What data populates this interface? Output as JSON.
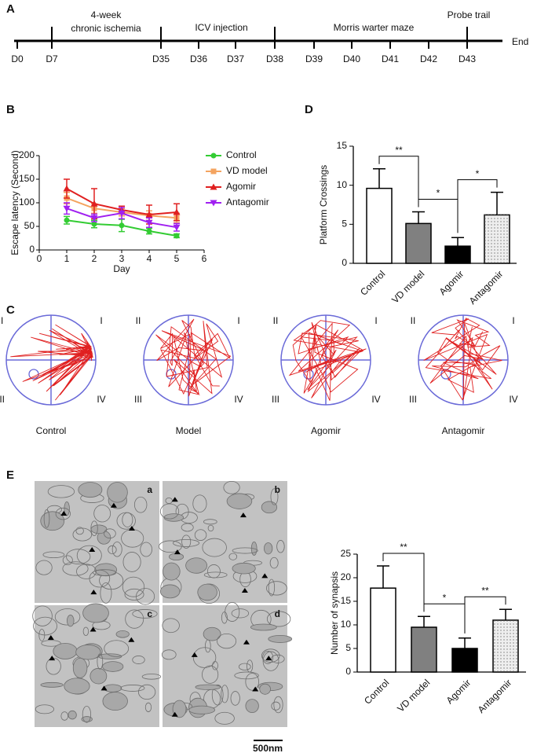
{
  "panel_labels": [
    "A",
    "B",
    "C",
    "D",
    "E"
  ],
  "timeline": {
    "days": [
      "D0",
      "D7",
      "D35",
      "D36",
      "D37",
      "D38",
      "D39",
      "D40",
      "D41",
      "D42",
      "D43"
    ],
    "phases": [
      [
        "4-week",
        "chronic ischemia"
      ],
      [
        "ICV injection"
      ],
      [
        "Morris warter maze"
      ],
      [
        "Probe trail"
      ]
    ],
    "end": "End"
  },
  "maze": {
    "quadrants": [
      "I",
      "II",
      "III",
      "IV"
    ],
    "groups": [
      "Control",
      "Model",
      "Agomir",
      "Antagomir"
    ]
  },
  "em": {
    "subpanels": [
      "a",
      "b",
      "c",
      "d"
    ],
    "scale_bar": "500nm"
  },
  "chart_data": [
    {
      "type": "line",
      "x_label": "Day",
      "y_label": "Escape latency (Second)",
      "x": [
        1,
        2,
        3,
        4,
        5
      ],
      "xlim": [
        0,
        6
      ],
      "xticks": [
        0,
        1,
        2,
        3,
        4,
        5,
        6
      ],
      "ylim": [
        0,
        200
      ],
      "yticks": [
        0,
        50,
        100,
        150,
        200
      ],
      "series": [
        {
          "name": "Control",
          "color": "#33cc33",
          "values": [
            63,
            55,
            52,
            40,
            30
          ],
          "errors": [
            8,
            8,
            13,
            6,
            4
          ]
        },
        {
          "name": "VD model",
          "color": "#f4a460",
          "values": [
            110,
            88,
            80,
            73,
            68
          ],
          "errors": [
            12,
            10,
            8,
            10,
            10
          ]
        },
        {
          "name": "Agomir",
          "color": "#e02020",
          "values": [
            130,
            98,
            85,
            75,
            80
          ],
          "errors": [
            20,
            32,
            8,
            20,
            18
          ]
        },
        {
          "name": "Antagomir",
          "color": "#a020f0",
          "values": [
            88,
            68,
            78,
            58,
            48
          ],
          "errors": [
            12,
            8,
            12,
            10,
            8
          ]
        }
      ]
    },
    {
      "type": "bar",
      "y_label": "Platform Crossings",
      "categories": [
        "Control",
        "VD model",
        "Agomir",
        "Antagomir"
      ],
      "values": [
        9.6,
        5.1,
        2.2,
        6.2
      ],
      "errors": [
        2.5,
        1.5,
        1.1,
        2.9
      ],
      "colors": [
        "#ffffff",
        "#808080",
        "#000000",
        "#eeeeee"
      ],
      "ylim": [
        0,
        15
      ],
      "yticks": [
        0,
        5,
        10,
        15
      ],
      "significance": [
        {
          "pair": [
            0,
            1
          ],
          "label": "**"
        },
        {
          "pair": [
            1,
            2
          ],
          "label": "*"
        },
        {
          "pair": [
            2,
            3
          ],
          "label": "*"
        }
      ]
    },
    {
      "type": "bar",
      "y_label": "Number of synapsis",
      "categories": [
        "Control",
        "VD model",
        "Agomir",
        "Antagomir"
      ],
      "values": [
        17.8,
        9.5,
        5.0,
        11.0
      ],
      "errors": [
        4.7,
        2.3,
        2.2,
        2.3
      ],
      "colors": [
        "#ffffff",
        "#808080",
        "#000000",
        "#eeeeee"
      ],
      "ylim": [
        0,
        25
      ],
      "yticks": [
        0,
        5,
        10,
        15,
        20,
        25
      ],
      "significance": [
        {
          "pair": [
            0,
            1
          ],
          "label": "**"
        },
        {
          "pair": [
            1,
            2
          ],
          "label": "*"
        },
        {
          "pair": [
            2,
            3
          ],
          "label": "**"
        }
      ]
    }
  ]
}
